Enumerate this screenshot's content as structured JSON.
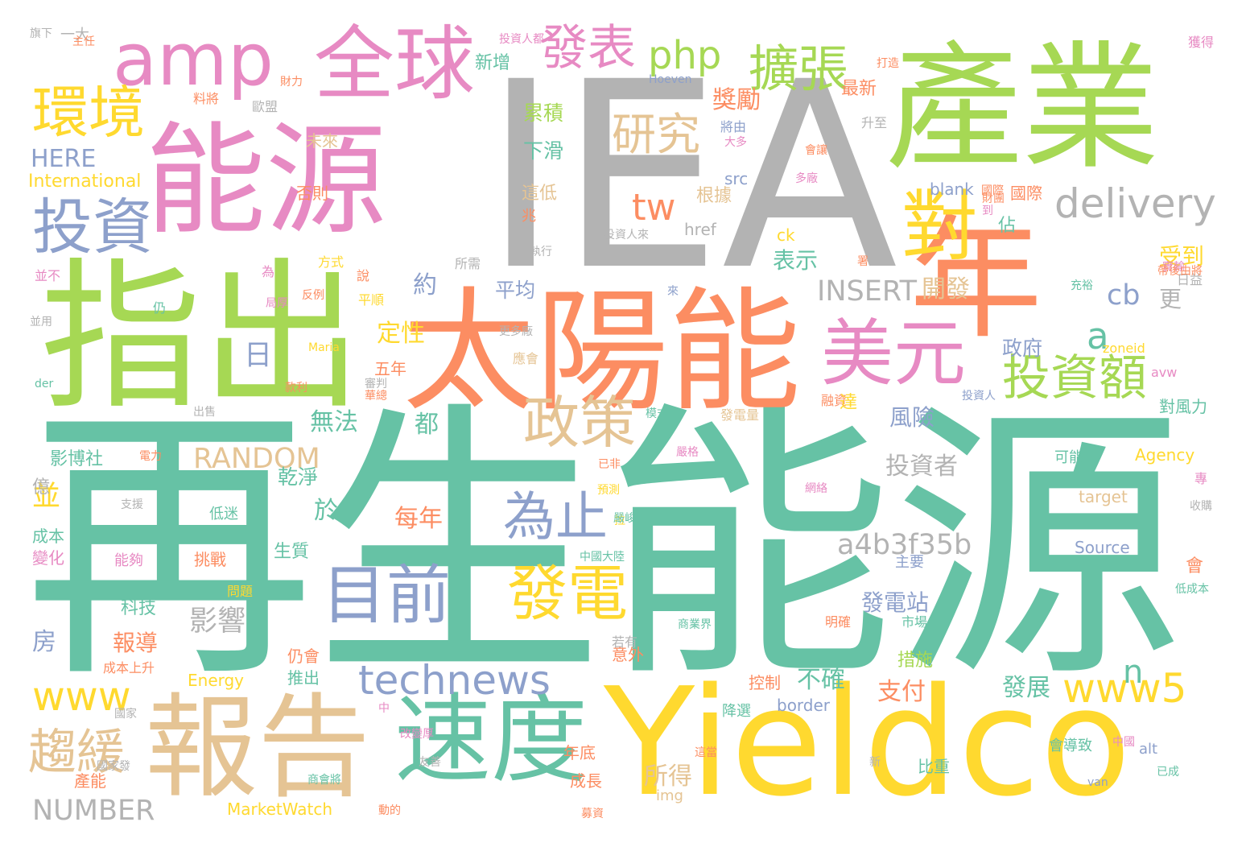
{
  "palette": {
    "teal": "#66c2a5",
    "orange": "#fc8d62",
    "blue": "#8da0cb",
    "pink": "#e78ac3",
    "green": "#a6d854",
    "yellow": "#ffd92f",
    "tan": "#e5c494",
    "gray": "#b3b3b3"
  },
  "words": [
    {
      "text": "再生能源",
      "color": "teal"
    },
    {
      "text": "IEA",
      "color": "gray"
    },
    {
      "text": "產業",
      "color": "green"
    },
    {
      "text": "能源",
      "color": "pink"
    },
    {
      "text": "指出",
      "color": "green"
    },
    {
      "text": "Yieldco",
      "color": "yellow"
    },
    {
      "text": "太陽能",
      "color": "orange"
    },
    {
      "text": "年",
      "color": "orange"
    },
    {
      "text": "報告",
      "color": "tan"
    },
    {
      "text": "速度",
      "color": "teal"
    },
    {
      "text": "全球",
      "color": "pink"
    },
    {
      "text": "amp",
      "color": "pink"
    },
    {
      "text": "美元",
      "color": "pink"
    },
    {
      "text": "對",
      "color": "yellow"
    },
    {
      "text": "投資",
      "color": "blue"
    },
    {
      "text": "環境",
      "color": "yellow"
    },
    {
      "text": "目前",
      "color": "blue"
    },
    {
      "text": "發電",
      "color": "yellow"
    },
    {
      "text": "政策",
      "color": "tan"
    },
    {
      "text": "為止",
      "color": "blue"
    },
    {
      "text": "technews",
      "color": "blue"
    },
    {
      "text": "擴張",
      "color": "green"
    },
    {
      "text": "發表",
      "color": "pink"
    },
    {
      "text": "php",
      "color": "green"
    },
    {
      "text": "delivery",
      "color": "gray"
    },
    {
      "text": "投資額",
      "color": "green"
    },
    {
      "text": "研究",
      "color": "tan"
    },
    {
      "text": "tw",
      "color": "orange"
    },
    {
      "text": "www5",
      "color": "yellow"
    },
    {
      "text": "www",
      "color": "yellow"
    },
    {
      "text": "趨緩",
      "color": "tan"
    },
    {
      "text": "a",
      "color": "teal"
    },
    {
      "text": "n",
      "color": "teal"
    },
    {
      "text": "獎勵",
      "color": "orange"
    },
    {
      "text": "INSERT",
      "color": "gray"
    },
    {
      "text": "a4b3f35b",
      "color": "gray"
    },
    {
      "text": "RANDOM",
      "color": "tan"
    },
    {
      "text": "NUMBER",
      "color": "gray"
    },
    {
      "text": "HERE",
      "color": "blue"
    },
    {
      "text": "International",
      "color": "yellow"
    },
    {
      "text": "累積",
      "color": "green"
    },
    {
      "text": "下滑",
      "color": "teal"
    },
    {
      "text": "新增",
      "color": "teal"
    },
    {
      "text": "最新",
      "color": "orange"
    },
    {
      "text": "將由",
      "color": "blue"
    },
    {
      "text": "src",
      "color": "blue"
    },
    {
      "text": "根據",
      "color": "tan"
    },
    {
      "text": "表示",
      "color": "teal"
    },
    {
      "text": "開發",
      "color": "tan"
    },
    {
      "text": "cb",
      "color": "blue"
    },
    {
      "text": "受到",
      "color": "yellow"
    },
    {
      "text": "更",
      "color": "gray"
    },
    {
      "text": "政府",
      "color": "blue"
    },
    {
      "text": "風險",
      "color": "blue"
    },
    {
      "text": "投資者",
      "color": "gray"
    },
    {
      "text": "約",
      "color": "blue"
    },
    {
      "text": "平均",
      "color": "blue"
    },
    {
      "text": "定性",
      "color": "yellow"
    },
    {
      "text": "日",
      "color": "blue"
    },
    {
      "text": "無法",
      "color": "teal"
    },
    {
      "text": "都",
      "color": "teal"
    },
    {
      "text": "每年",
      "color": "orange"
    },
    {
      "text": "於",
      "color": "teal"
    },
    {
      "text": "影響",
      "color": "gray"
    },
    {
      "text": "報導",
      "color": "orange"
    },
    {
      "text": "發電站",
      "color": "blue"
    },
    {
      "text": "不確",
      "color": "teal"
    },
    {
      "text": "支付",
      "color": "orange"
    },
    {
      "text": "發展",
      "color": "teal"
    },
    {
      "text": "所得",
      "color": "tan"
    },
    {
      "text": "乾淨",
      "color": "teal"
    },
    {
      "text": "影博社",
      "color": "teal"
    },
    {
      "text": "並",
      "color": "yellow"
    },
    {
      "text": "成本",
      "color": "teal"
    },
    {
      "text": "變化",
      "color": "pink"
    },
    {
      "text": "億",
      "color": "gray"
    },
    {
      "text": "房",
      "color": "blue"
    },
    {
      "text": "生質",
      "color": "teal"
    },
    {
      "text": "科技",
      "color": "teal"
    },
    {
      "text": "Energy",
      "color": "yellow"
    },
    {
      "text": "MarketWatch",
      "color": "yellow"
    },
    {
      "text": "Source",
      "color": "blue"
    },
    {
      "text": "target",
      "color": "tan"
    },
    {
      "text": "Agency",
      "color": "yellow"
    },
    {
      "text": "zoneid",
      "color": "yellow"
    },
    {
      "text": "avw",
      "color": "pink"
    },
    {
      "text": "對風力",
      "color": "teal"
    },
    {
      "text": "可能",
      "color": "teal"
    },
    {
      "text": "alt",
      "color": "blue"
    },
    {
      "text": "img",
      "color": "tan"
    },
    {
      "text": "border",
      "color": "blue"
    },
    {
      "text": "blank",
      "color": "blue"
    },
    {
      "text": "href",
      "color": "gray"
    },
    {
      "text": "ck",
      "color": "yellow"
    },
    {
      "text": "國際",
      "color": "orange"
    },
    {
      "text": "佔",
      "color": "teal"
    },
    {
      "text": "兆",
      "color": "orange"
    },
    {
      "text": "這低",
      "color": "tan"
    },
    {
      "text": "否則",
      "color": "orange"
    },
    {
      "text": "未來",
      "color": "tan"
    },
    {
      "text": "年底",
      "color": "orange"
    },
    {
      "text": "成長",
      "color": "orange"
    },
    {
      "text": "產能",
      "color": "orange"
    },
    {
      "text": "比重",
      "color": "teal"
    },
    {
      "text": "措施",
      "color": "green"
    },
    {
      "text": "控制",
      "color": "orange"
    },
    {
      "text": "降選",
      "color": "teal"
    },
    {
      "text": "會導致",
      "color": "teal"
    },
    {
      "text": "推出",
      "color": "teal"
    },
    {
      "text": "仍會",
      "color": "orange"
    },
    {
      "text": "挑戰",
      "color": "orange"
    },
    {
      "text": "能夠",
      "color": "pink"
    },
    {
      "text": "低迷",
      "color": "teal"
    },
    {
      "text": "主要",
      "color": "blue"
    },
    {
      "text": "明確",
      "color": "orange"
    },
    {
      "text": "意外",
      "color": "orange"
    },
    {
      "text": "若有",
      "color": "gray"
    },
    {
      "text": "成本上升",
      "color": "orange"
    },
    {
      "text": "一大",
      "color": "gray"
    },
    {
      "text": "主任",
      "color": "orange"
    },
    {
      "text": "料將",
      "color": "orange"
    },
    {
      "text": "歐盟",
      "color": "gray"
    },
    {
      "text": "投資人來",
      "color": "gray"
    },
    {
      "text": "投資人",
      "color": "blue"
    },
    {
      "text": "發電量",
      "color": "tan"
    },
    {
      "text": "融資",
      "color": "orange"
    },
    {
      "text": "達",
      "color": "yellow"
    },
    {
      "text": "五年",
      "color": "orange"
    },
    {
      "text": "平順",
      "color": "yellow"
    },
    {
      "text": "Hoeven",
      "color": "blue"
    },
    {
      "text": "升至",
      "color": "gray"
    },
    {
      "text": "多廠",
      "color": "pink"
    },
    {
      "text": "大多",
      "color": "pink"
    },
    {
      "text": "打造",
      "color": "orange"
    },
    {
      "text": "應會",
      "color": "tan"
    },
    {
      "text": "中國大陸",
      "color": "teal"
    },
    {
      "text": "市場",
      "color": "teal"
    },
    {
      "text": "日益",
      "color": "gray"
    },
    {
      "text": "會",
      "color": "orange"
    },
    {
      "text": "低成本",
      "color": "teal"
    },
    {
      "text": "van",
      "color": "blue"
    },
    {
      "text": "已成",
      "color": "teal"
    },
    {
      "text": "中國",
      "color": "pink"
    },
    {
      "text": "說",
      "color": "orange"
    },
    {
      "text": "所需",
      "color": "gray"
    },
    {
      "text": "為",
      "color": "pink"
    },
    {
      "text": "方式",
      "color": "yellow"
    },
    {
      "text": "仍",
      "color": "teal"
    },
    {
      "text": "並不",
      "color": "pink"
    },
    {
      "text": "旗下",
      "color": "gray"
    },
    {
      "text": "獲得",
      "color": "pink"
    },
    {
      "text": "投資人都",
      "color": "pink"
    },
    {
      "text": "財力",
      "color": "orange"
    },
    {
      "text": "出售",
      "color": "gray"
    },
    {
      "text": "電力",
      "color": "orange"
    },
    {
      "text": "支援",
      "color": "gray"
    },
    {
      "text": "國家",
      "color": "gray"
    },
    {
      "text": "國家發",
      "color": "gray"
    },
    {
      "text": "更多廠",
      "color": "gray"
    },
    {
      "text": "商會將",
      "color": "teal"
    },
    {
      "text": "友善",
      "color": "gray"
    },
    {
      "text": "改變厚",
      "color": "pink"
    },
    {
      "text": "Maria",
      "color": "yellow"
    },
    {
      "text": "der",
      "color": "teal"
    },
    {
      "text": "款利",
      "color": "orange"
    },
    {
      "text": "局厚",
      "color": "pink"
    },
    {
      "text": "反例",
      "color": "orange"
    },
    {
      "text": "網絡",
      "color": "pink"
    },
    {
      "text": "新",
      "color": "gray"
    },
    {
      "text": "拉",
      "color": "yellow"
    },
    {
      "text": "已非",
      "color": "orange"
    },
    {
      "text": "預測",
      "color": "yellow"
    },
    {
      "text": "嚴峻",
      "color": "teal"
    },
    {
      "text": "充裕",
      "color": "teal"
    },
    {
      "text": "問題",
      "color": "yellow"
    },
    {
      "text": "來",
      "color": "blue"
    },
    {
      "text": "執行",
      "color": "gray"
    },
    {
      "text": "模式",
      "color": "teal"
    },
    {
      "text": "審判",
      "color": "gray"
    },
    {
      "text": "國際",
      "color": "orange"
    },
    {
      "text": "收購",
      "color": "gray"
    },
    {
      "text": "實輸",
      "color": "pink"
    },
    {
      "text": "帶後由將",
      "color": "orange"
    },
    {
      "text": "專",
      "color": "pink"
    },
    {
      "text": "動的",
      "color": "orange"
    },
    {
      "text": "財團",
      "color": "orange"
    },
    {
      "text": "署",
      "color": "orange"
    },
    {
      "text": "中",
      "color": "pink"
    },
    {
      "text": "嚴格",
      "color": "pink"
    },
    {
      "text": "這當",
      "color": "orange"
    },
    {
      "text": "募資",
      "color": "orange"
    },
    {
      "text": "商業界",
      "color": "teal"
    },
    {
      "text": "會讓",
      "color": "orange"
    },
    {
      "text": "並用",
      "color": "gray"
    },
    {
      "text": "華總",
      "color": "orange"
    },
    {
      "text": "到",
      "color": "pink"
    }
  ]
}
